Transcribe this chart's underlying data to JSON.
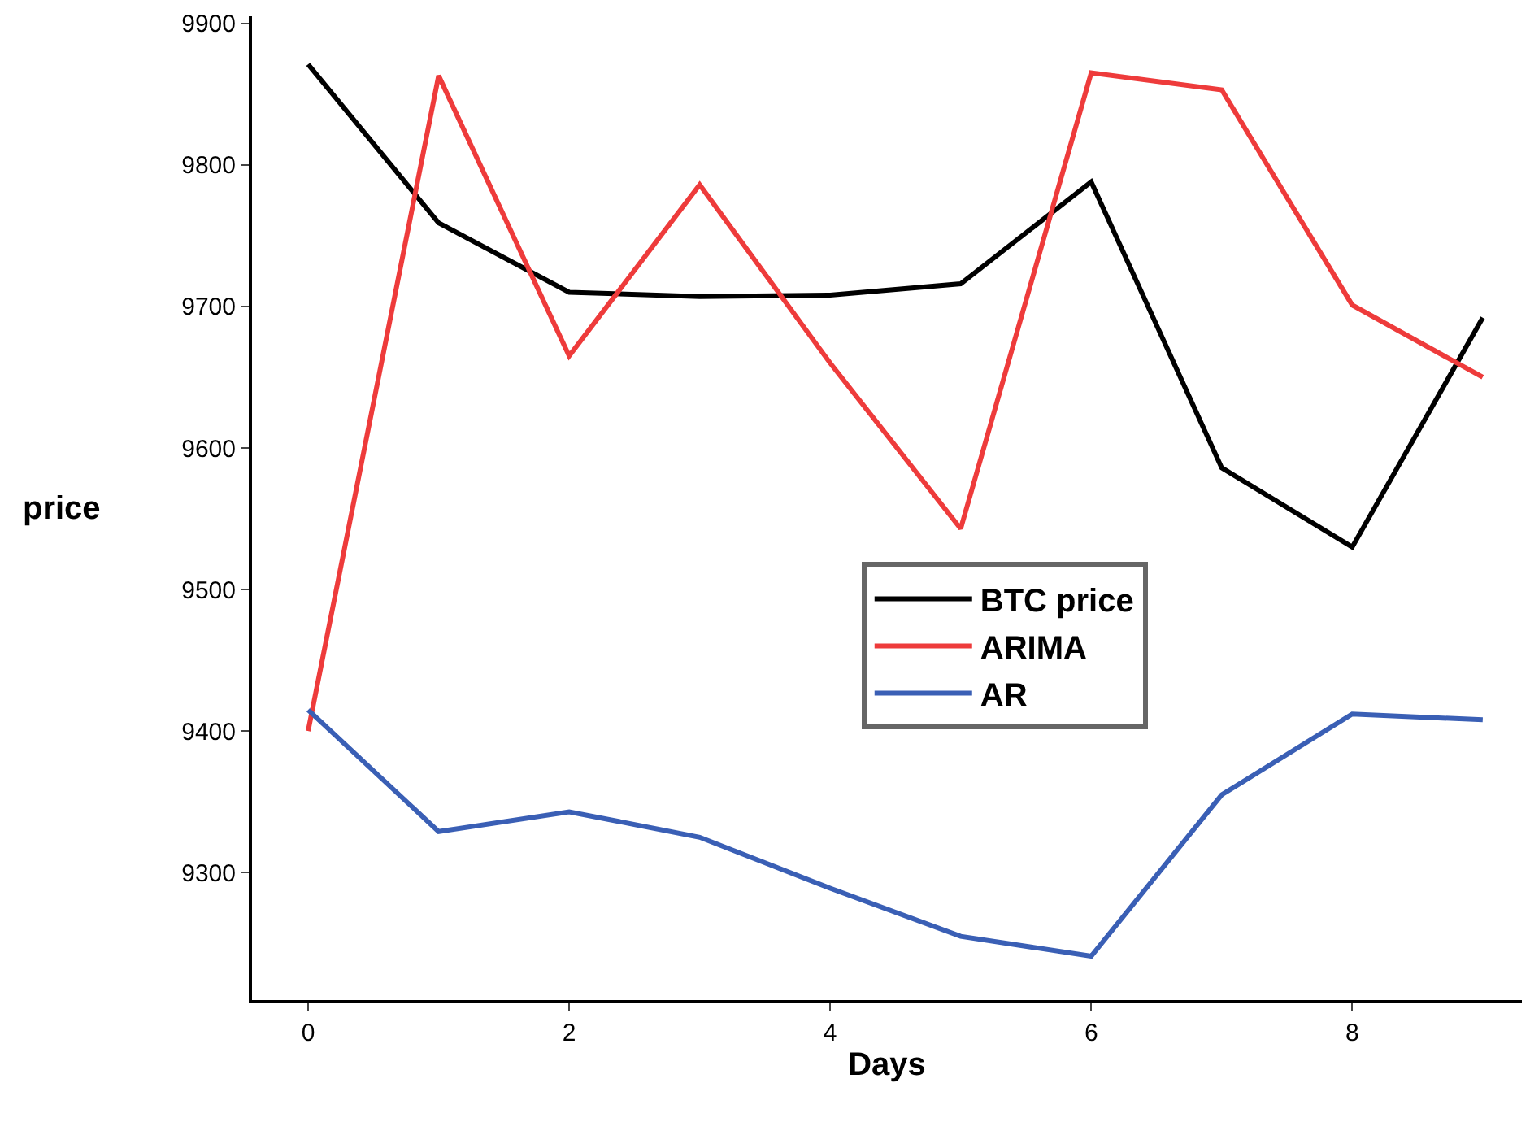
{
  "chart_data": {
    "type": "line",
    "xlabel": "Days",
    "ylabel": "price",
    "x": [
      0,
      1,
      2,
      3,
      4,
      5,
      6,
      7,
      8,
      9
    ],
    "series": [
      {
        "name": "BTC price",
        "color": "#000000",
        "values": [
          9871,
          9759,
          9710,
          9707,
          9708,
          9716,
          9788,
          9586,
          9530,
          9692
        ]
      },
      {
        "name": "ARIMA",
        "color": "#ee3b3b",
        "values": [
          9400,
          9863,
          9665,
          9786,
          9660,
          9543,
          9865,
          9853,
          9701,
          9650
        ]
      },
      {
        "name": "AR",
        "color": "#3a5fb5",
        "values": [
          9415,
          9329,
          9343,
          9325,
          9289,
          9255,
          9241,
          9355,
          9412,
          9408
        ]
      }
    ],
    "xlim": [
      -0.43,
      9.3
    ],
    "xticks": [
      0,
      2,
      4,
      6,
      8
    ],
    "ylim": [
      9210,
      9905
    ],
    "yticks": [
      9300,
      9400,
      9500,
      9600,
      9700,
      9800,
      9900
    ],
    "legend": "right",
    "marker": "none",
    "line_style": "solid"
  }
}
